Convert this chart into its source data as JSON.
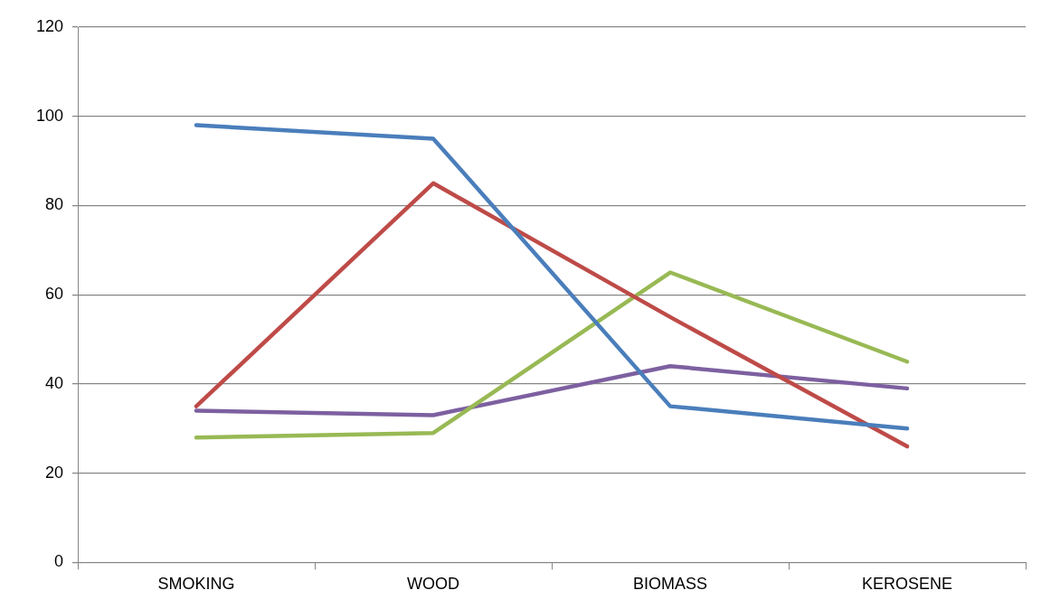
{
  "chart_data": {
    "type": "line",
    "categories": [
      "SMOKING",
      "WOOD",
      "BIOMASS",
      "KEROSENE"
    ],
    "series": [
      {
        "color": "#4a7ebb",
        "values": [
          98,
          95,
          35,
          30
        ]
      },
      {
        "color": "#be4b48",
        "values": [
          35,
          85,
          55,
          26
        ]
      },
      {
        "color": "#98b954",
        "values": [
          28,
          29,
          65,
          45
        ]
      },
      {
        "color": "#7d60a0",
        "values": [
          34,
          33,
          44,
          39
        ]
      }
    ],
    "ylim": [
      0,
      120
    ],
    "yticks": [
      0,
      20,
      40,
      60,
      80,
      100,
      120
    ],
    "grid": "y",
    "legend": false,
    "marker": "none",
    "line_style": "solid"
  }
}
